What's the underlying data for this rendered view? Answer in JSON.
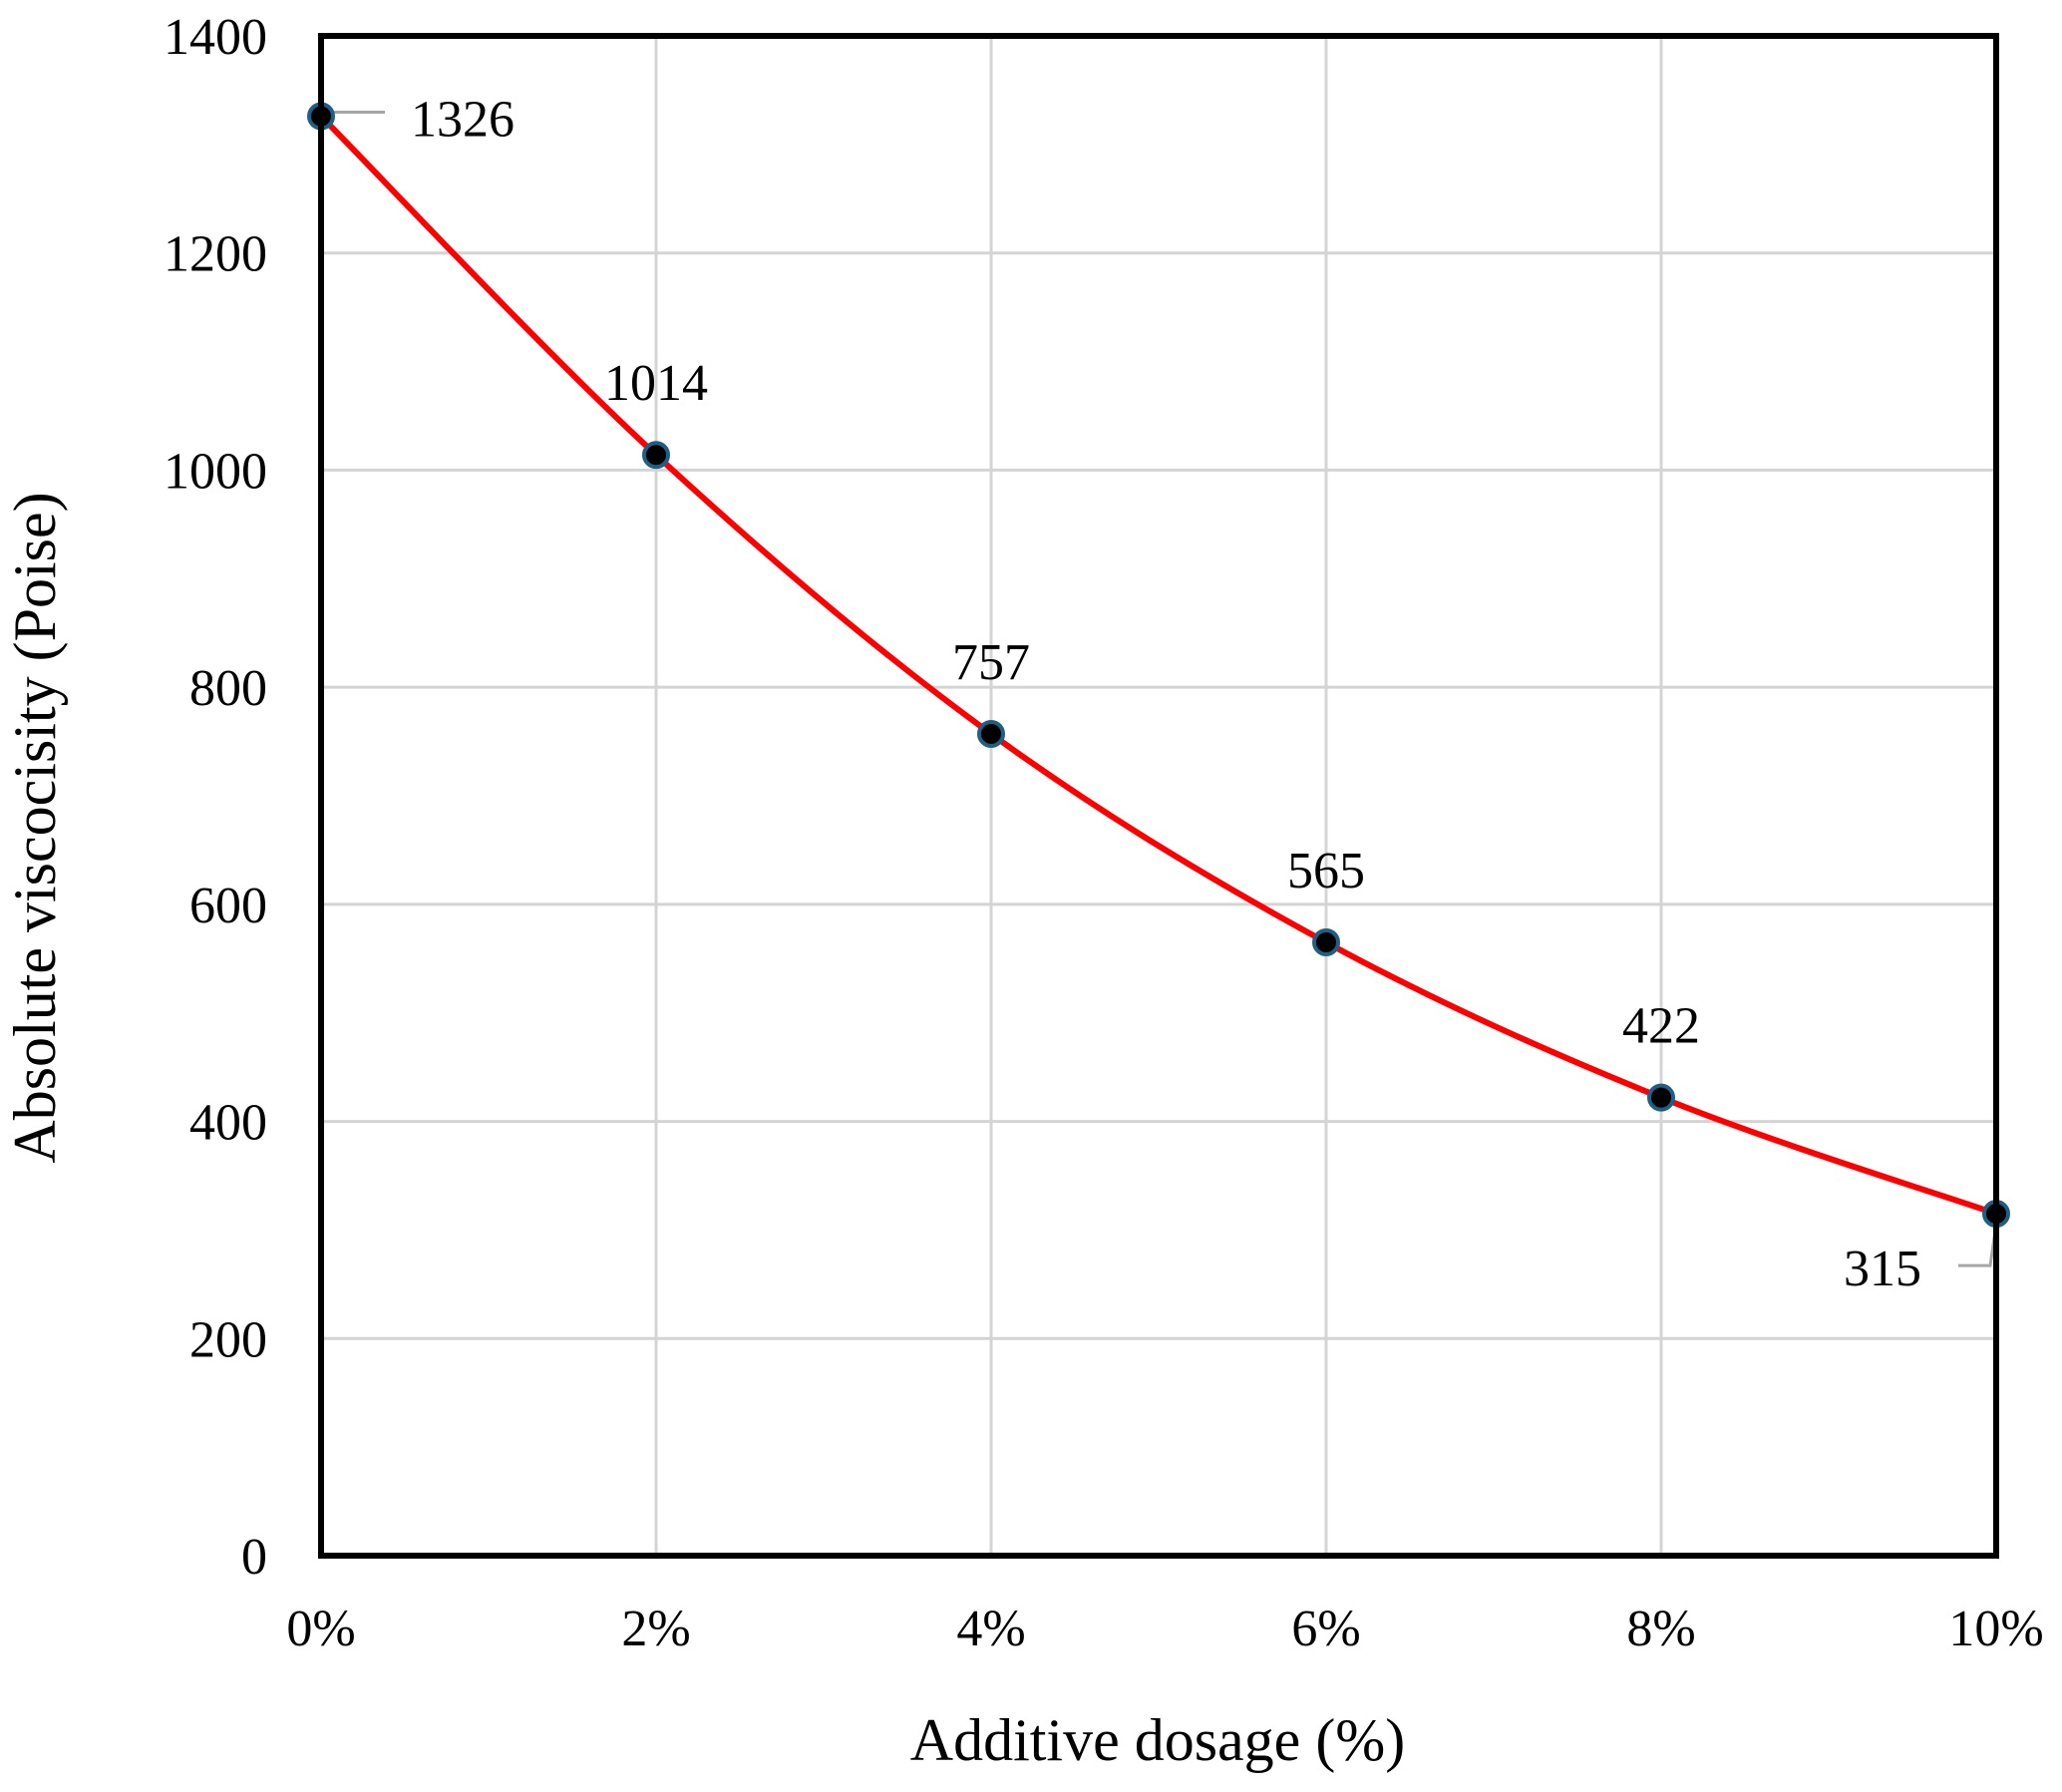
{
  "chart_data": {
    "type": "line",
    "title": "",
    "xlabel": "Additive dosage (%)",
    "ylabel": "Absolute viscocisity (Poise)",
    "x": [
      0,
      2,
      4,
      6,
      8,
      10
    ],
    "x_tick_labels": [
      "0%",
      "2%",
      "4%",
      "6%",
      "8%",
      "10%"
    ],
    "xlim": [
      0,
      10
    ],
    "y_ticks": [
      0,
      200,
      400,
      600,
      800,
      1000,
      1200,
      1400
    ],
    "ylim": [
      0,
      1400
    ],
    "grid": true,
    "legend": "none",
    "series": [
      {
        "values": [
          1326,
          1014,
          757,
          565,
          422,
          315
        ],
        "data_labels": [
          "1326",
          "1014",
          "757",
          "565",
          "422",
          "315"
        ],
        "line_color": "#ff0000",
        "marker_color": "#000000",
        "marker_edge_color": "#1f5f86",
        "smooth": true
      }
    ]
  }
}
